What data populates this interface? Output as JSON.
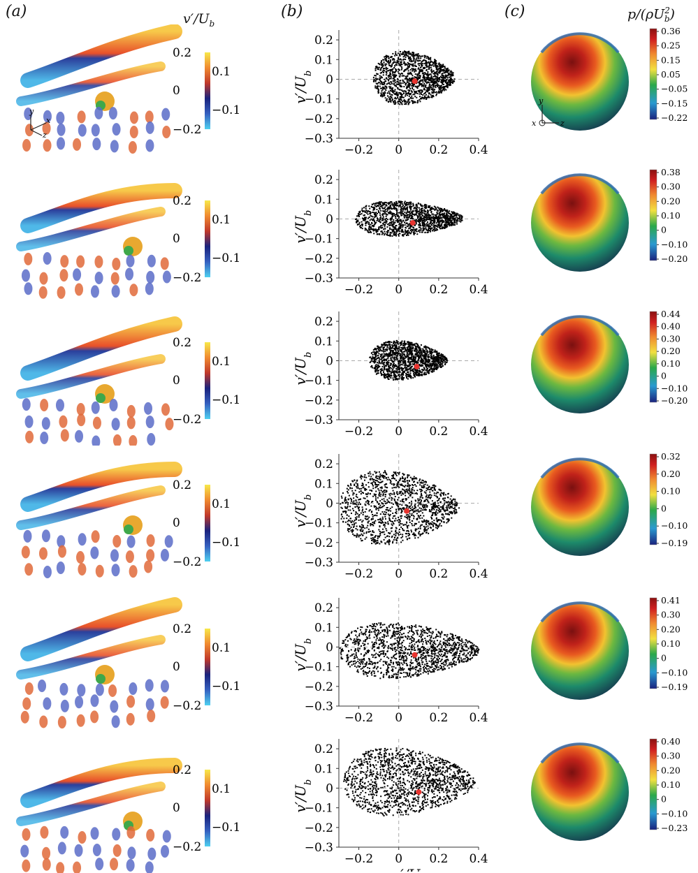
{
  "panels": {
    "a": {
      "label": "a"
    },
    "b": {
      "label": "b"
    },
    "c": {
      "label": "c"
    }
  },
  "colorbar_a": {
    "title_v": "v′",
    "title_u": "U",
    "title_sub": "b",
    "labels": [
      "0.2",
      "0.1",
      "0",
      "−0.1",
      "−0.2"
    ]
  },
  "colorbar_c": {
    "title_p": "p",
    "title_rho": "ρU",
    "title_sub": "b",
    "title_sup": "2"
  },
  "axes_triad_a": {
    "y": "y",
    "x": "x",
    "z": "z"
  },
  "axes_triad_c": {
    "y": "y",
    "x": "x",
    "z": "z"
  },
  "chart_data": [
    {
      "type": "scatter",
      "xlabel": "",
      "ylabel": "v′/U_b",
      "xlim": [
        -0.3,
        0.4
      ],
      "ylim": [
        -0.3,
        0.25
      ],
      "xticks": [
        "−0.2",
        "0",
        "0.2",
        "0.4"
      ],
      "yticks": [
        "0.2",
        "0.1",
        "0",
        "−0.1",
        "−0.2",
        "−0.3"
      ],
      "cloud": {
        "x": [
          -0.13,
          0.28
        ],
        "y": [
          -0.12,
          0.14
        ]
      },
      "mean_point": {
        "x": 0.08,
        "y": -0.01
      }
    },
    {
      "type": "scatter",
      "xlabel": "",
      "ylabel": "v′/U_b",
      "xlim": [
        -0.3,
        0.4
      ],
      "ylim": [
        -0.3,
        0.25
      ],
      "xticks": [
        "−0.2",
        "0",
        "0.2",
        "0.4"
      ],
      "yticks": [
        "0.2",
        "0.1",
        "0",
        "−0.1",
        "−0.2",
        "−0.3"
      ],
      "cloud": {
        "x": [
          -0.22,
          0.32
        ],
        "y": [
          -0.08,
          0.09
        ]
      },
      "mean_point": {
        "x": 0.07,
        "y": -0.02
      }
    },
    {
      "type": "scatter",
      "xlabel": "",
      "ylabel": "v′/U_b",
      "xlim": [
        -0.3,
        0.4
      ],
      "ylim": [
        -0.3,
        0.25
      ],
      "xticks": [
        "−0.2",
        "0",
        "0.2",
        "0.4"
      ],
      "yticks": [
        "0.2",
        "0.1",
        "0",
        "−0.1",
        "−0.2",
        "−0.3"
      ],
      "cloud": {
        "x": [
          -0.15,
          0.24
        ],
        "y": [
          -0.09,
          0.1
        ]
      },
      "mean_point": {
        "x": 0.09,
        "y": -0.03
      }
    },
    {
      "type": "scatter",
      "xlabel": "",
      "ylabel": "v′/U_b",
      "xlim": [
        -0.3,
        0.4
      ],
      "ylim": [
        -0.3,
        0.25
      ],
      "xticks": [
        "−0.2",
        "0",
        "0.2",
        "0.4"
      ],
      "yticks": [
        "0.2",
        "0.1",
        "0",
        "−0.1",
        "−0.2",
        "−0.3"
      ],
      "cloud": {
        "x": [
          -0.3,
          0.3
        ],
        "y": [
          -0.2,
          0.16
        ]
      },
      "mean_point": {
        "x": 0.04,
        "y": -0.04
      }
    },
    {
      "type": "scatter",
      "xlabel": "",
      "ylabel": "v′/U_b",
      "xlim": [
        -0.3,
        0.4
      ],
      "ylim": [
        -0.3,
        0.25
      ],
      "xticks": [
        "−0.2",
        "0",
        "0.2",
        "0.4"
      ],
      "yticks": [
        "0.2",
        "0.1",
        "0",
        "−0.1",
        "−0.2",
        "−0.3"
      ],
      "cloud": {
        "x": [
          -0.3,
          0.4
        ],
        "y": [
          -0.15,
          0.12
        ]
      },
      "mean_point": {
        "x": 0.08,
        "y": -0.04
      }
    },
    {
      "type": "scatter",
      "xlabel": "u′/U_b",
      "ylabel": "v′/U_b",
      "xlim": [
        -0.3,
        0.4
      ],
      "ylim": [
        -0.3,
        0.25
      ],
      "xticks": [
        "−0.2",
        "0",
        "0.2",
        "0.4"
      ],
      "yticks": [
        "0.2",
        "0.1",
        "0",
        "−0.1",
        "−0.2",
        "−0.3"
      ],
      "cloud": {
        "x": [
          -0.28,
          0.38
        ],
        "y": [
          -0.13,
          0.2
        ]
      },
      "mean_point": {
        "x": 0.1,
        "y": -0.02
      }
    }
  ],
  "pressure_colorbars": [
    {
      "labels": [
        "0.36",
        "0.25",
        "0.15",
        "0.05",
        "−0.05",
        "−0.15",
        "−0.22"
      ],
      "min": -0.22,
      "max": 0.36
    },
    {
      "labels": [
        "0.38",
        "0.30",
        "0.20",
        "0.10",
        "0",
        "−0.10",
        "−0.20"
      ],
      "min": -0.2,
      "max": 0.38
    },
    {
      "labels": [
        "0.44",
        "0.40",
        "0.30",
        "0.20",
        "0.10",
        "0",
        "−0.10",
        "−0.20"
      ],
      "min": -0.2,
      "max": 0.44
    },
    {
      "labels": [
        "0.32",
        "0.20",
        "0.10",
        "0",
        "−0.10",
        "−0.19"
      ],
      "min": -0.19,
      "max": 0.32
    },
    {
      "labels": [
        "0.41",
        "0.30",
        "0.20",
        "0.10",
        "0",
        "−0.10",
        "−0.19"
      ],
      "min": -0.19,
      "max": 0.41
    },
    {
      "labels": [
        "0.40",
        "0.30",
        "0.20",
        "0.10",
        "0",
        "−0.10",
        "−0.23"
      ],
      "min": -0.23,
      "max": 0.4
    }
  ],
  "colors": {
    "red_point": "#e8342f",
    "cloud": "#000000",
    "v_cmap": [
      "#4fd0f0",
      "#3560c0",
      "#1a237e",
      "#c0392b",
      "#f08a30",
      "#f7e84a"
    ]
  }
}
